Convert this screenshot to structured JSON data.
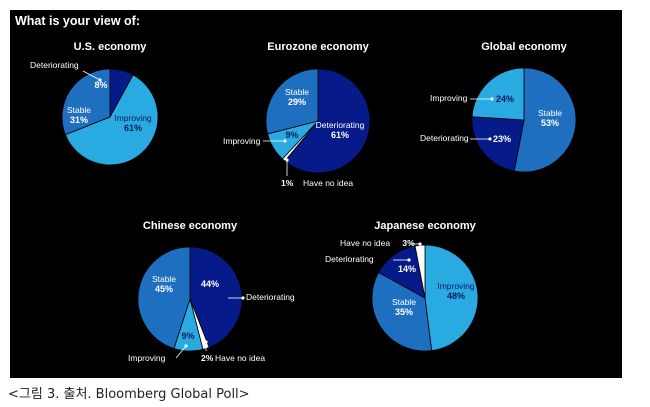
{
  "heading": "What is your view of:",
  "caption": "<그림 3. 출처. Bloomberg Global Poll>",
  "colors": {
    "dark": "#071a8a",
    "mid": "#1f6fc0",
    "light": "#29abe2",
    "white": "#ffffff"
  },
  "chart_data": [
    {
      "type": "pie",
      "title": "U.S. economy",
      "slices": [
        {
          "label": "Deteriorating",
          "value": 8,
          "display": "8%",
          "color": "dark"
        },
        {
          "label": "Improving",
          "value": 61,
          "display": "61%",
          "color": "light"
        },
        {
          "label": "Stable",
          "value": 31,
          "display": "31%",
          "color": "mid"
        }
      ]
    },
    {
      "type": "pie",
      "title": "Eurozone economy",
      "slices": [
        {
          "label": "Deteriorating",
          "value": 61,
          "display": "61%",
          "color": "dark"
        },
        {
          "label": "Have no idea",
          "value": 1,
          "display": "1%",
          "color": "white"
        },
        {
          "label": "Improving",
          "value": 9,
          "display": "9%",
          "color": "light"
        },
        {
          "label": "Stable",
          "value": 29,
          "display": "29%",
          "color": "mid"
        }
      ]
    },
    {
      "type": "pie",
      "title": "Global economy",
      "slices": [
        {
          "label": "Stable",
          "value": 53,
          "display": "53%",
          "color": "mid"
        },
        {
          "label": "Deteriorating",
          "value": 23,
          "display": "23%",
          "color": "dark"
        },
        {
          "label": "Improving",
          "value": 24,
          "display": "24%",
          "color": "light"
        }
      ]
    },
    {
      "type": "pie",
      "title": "Chinese economy",
      "slices": [
        {
          "label": "Deteriorating",
          "value": 44,
          "display": "44%",
          "color": "dark"
        },
        {
          "label": "Have no idea",
          "value": 2,
          "display": "2%",
          "color": "white"
        },
        {
          "label": "Improving",
          "value": 9,
          "display": "9%",
          "color": "light"
        },
        {
          "label": "Stable",
          "value": 45,
          "display": "45%",
          "color": "mid"
        }
      ]
    },
    {
      "type": "pie",
      "title": "Japanese economy",
      "slices": [
        {
          "label": "Improving",
          "value": 48,
          "display": "48%",
          "color": "light"
        },
        {
          "label": "Stable",
          "value": 35,
          "display": "35%",
          "color": "mid"
        },
        {
          "label": "Deteriorating",
          "value": 14,
          "display": "14%",
          "color": "dark"
        },
        {
          "label": "Have no idea",
          "value": 3,
          "display": "3%",
          "color": "white"
        }
      ]
    }
  ]
}
